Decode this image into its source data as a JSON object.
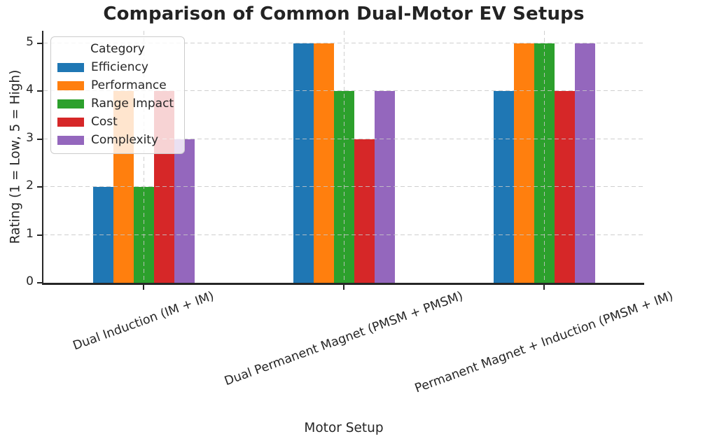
{
  "chart_data": {
    "type": "bar",
    "title": "Comparison of Common Dual-Motor EV Setups",
    "xlabel": "Motor Setup",
    "ylabel": "Rating (1 = Low, 5 = High)",
    "ylim": [
      0,
      5.25
    ],
    "yticks": [
      0,
      1,
      2,
      3,
      4,
      5
    ],
    "grid": "both, dashed, drawn above bars",
    "legend": {
      "title": "Category",
      "position": "upper-left"
    },
    "categories": [
      "Dual Induction (IM + IM)",
      "Dual Permanent Magnet (PMSM + PMSM)",
      "Permanent Magnet + Induction (PMSM + IM)"
    ],
    "series": [
      {
        "name": "Efficiency",
        "color": "#1f77b4",
        "values": [
          2,
          5,
          4
        ]
      },
      {
        "name": "Performance",
        "color": "#ff7f0e",
        "values": [
          4,
          5,
          5
        ]
      },
      {
        "name": "Range Impact",
        "color": "#2ca02c",
        "values": [
          2,
          4,
          5
        ]
      },
      {
        "name": "Cost",
        "color": "#d62728",
        "values": [
          4,
          3,
          4
        ]
      },
      {
        "name": "Complexity",
        "color": "#9467bd",
        "values": [
          3,
          4,
          5
        ]
      }
    ]
  },
  "colors": {
    "background": "#ffffff",
    "text": "#262626",
    "spine": "#262626",
    "gridline": "#c7c7c7",
    "legend_border": "#cccccc"
  }
}
